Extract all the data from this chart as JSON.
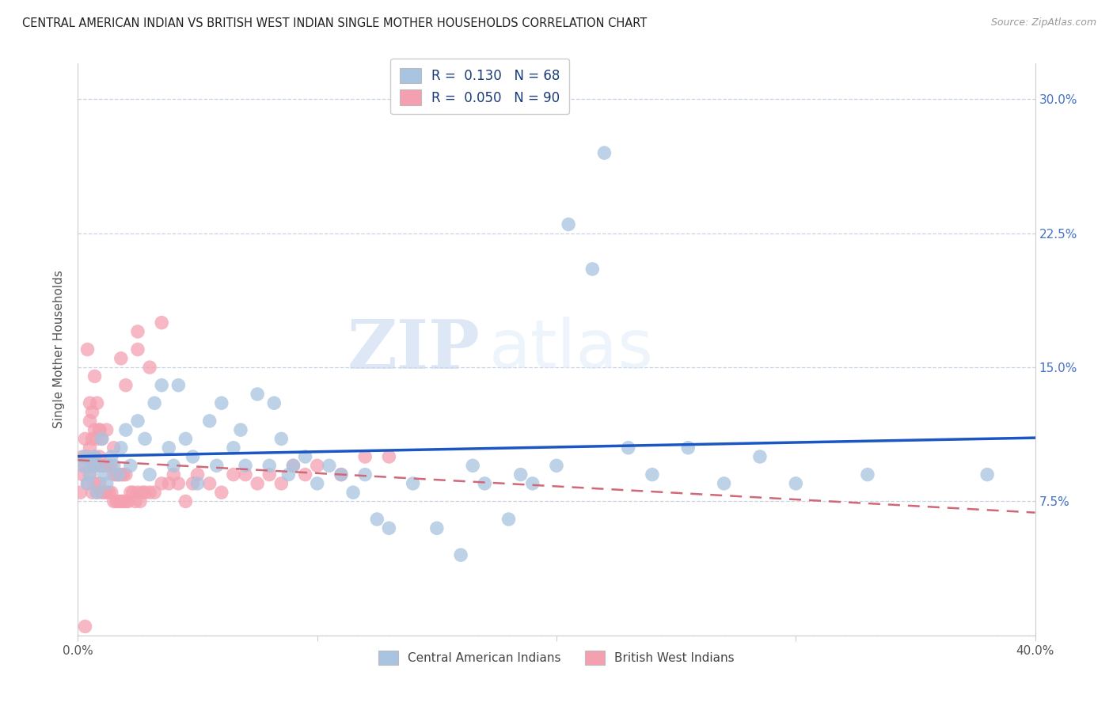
{
  "title": "CENTRAL AMERICAN INDIAN VS BRITISH WEST INDIAN SINGLE MOTHER HOUSEHOLDS CORRELATION CHART",
  "source": "Source: ZipAtlas.com",
  "ylabel": "Single Mother Households",
  "xlim": [
    0.0,
    0.4
  ],
  "ylim": [
    0.0,
    0.32
  ],
  "xticks": [
    0.0,
    0.1,
    0.2,
    0.3,
    0.4
  ],
  "xticklabels": [
    "0.0%",
    "",
    "",
    "",
    "40.0%"
  ],
  "yticks": [
    0.0,
    0.075,
    0.15,
    0.225,
    0.3
  ],
  "yticklabels": [
    "",
    "7.5%",
    "15.0%",
    "22.5%",
    "30.0%"
  ],
  "blue_R": "0.130",
  "blue_N": "68",
  "pink_R": "0.050",
  "pink_N": "90",
  "blue_color": "#a8c4e0",
  "pink_color": "#f4a0b0",
  "blue_line_color": "#1a56c4",
  "pink_line_color": "#d06878",
  "background_color": "#ffffff",
  "grid_color": "#c8d4e4",
  "legend_label_blue": "Central American Indians",
  "legend_label_pink": "British West Indians",
  "watermark_zip": "ZIP",
  "watermark_atlas": "atlas",
  "blue_scatter_x": [
    0.002,
    0.003,
    0.004,
    0.005,
    0.006,
    0.007,
    0.008,
    0.009,
    0.01,
    0.011,
    0.012,
    0.014,
    0.015,
    0.017,
    0.018,
    0.02,
    0.022,
    0.025,
    0.028,
    0.03,
    0.032,
    0.035,
    0.038,
    0.04,
    0.042,
    0.045,
    0.048,
    0.05,
    0.055,
    0.058,
    0.06,
    0.065,
    0.068,
    0.07,
    0.075,
    0.08,
    0.082,
    0.085,
    0.088,
    0.09,
    0.095,
    0.1,
    0.105,
    0.11,
    0.115,
    0.12,
    0.125,
    0.13,
    0.14,
    0.15,
    0.16,
    0.165,
    0.17,
    0.18,
    0.185,
    0.19,
    0.2,
    0.205,
    0.215,
    0.22,
    0.23,
    0.24,
    0.255,
    0.27,
    0.285,
    0.3,
    0.33,
    0.38
  ],
  "blue_scatter_y": [
    0.095,
    0.1,
    0.085,
    0.09,
    0.095,
    0.1,
    0.08,
    0.095,
    0.11,
    0.09,
    0.085,
    0.1,
    0.095,
    0.09,
    0.105,
    0.115,
    0.095,
    0.12,
    0.11,
    0.09,
    0.13,
    0.14,
    0.105,
    0.095,
    0.14,
    0.11,
    0.1,
    0.085,
    0.12,
    0.095,
    0.13,
    0.105,
    0.115,
    0.095,
    0.135,
    0.095,
    0.13,
    0.11,
    0.09,
    0.095,
    0.1,
    0.085,
    0.095,
    0.09,
    0.08,
    0.09,
    0.065,
    0.06,
    0.085,
    0.06,
    0.045,
    0.095,
    0.085,
    0.065,
    0.09,
    0.085,
    0.095,
    0.23,
    0.205,
    0.27,
    0.105,
    0.09,
    0.105,
    0.085,
    0.1,
    0.085,
    0.09,
    0.09
  ],
  "pink_scatter_x": [
    0.001,
    0.002,
    0.002,
    0.003,
    0.003,
    0.004,
    0.004,
    0.005,
    0.005,
    0.005,
    0.006,
    0.006,
    0.006,
    0.007,
    0.007,
    0.007,
    0.008,
    0.008,
    0.008,
    0.009,
    0.009,
    0.009,
    0.01,
    0.01,
    0.01,
    0.011,
    0.011,
    0.012,
    0.012,
    0.012,
    0.013,
    0.013,
    0.014,
    0.014,
    0.015,
    0.015,
    0.015,
    0.016,
    0.016,
    0.017,
    0.017,
    0.018,
    0.018,
    0.019,
    0.019,
    0.02,
    0.02,
    0.021,
    0.022,
    0.023,
    0.024,
    0.025,
    0.026,
    0.027,
    0.028,
    0.03,
    0.032,
    0.035,
    0.038,
    0.04,
    0.042,
    0.045,
    0.048,
    0.05,
    0.055,
    0.06,
    0.065,
    0.07,
    0.075,
    0.08,
    0.085,
    0.09,
    0.095,
    0.1,
    0.11,
    0.12,
    0.13,
    0.035,
    0.025,
    0.003,
    0.004,
    0.005,
    0.006,
    0.007,
    0.008,
    0.009,
    0.018,
    0.02,
    0.025,
    0.03
  ],
  "pink_scatter_y": [
    0.08,
    0.09,
    0.1,
    0.095,
    0.11,
    0.085,
    0.1,
    0.09,
    0.105,
    0.12,
    0.08,
    0.095,
    0.11,
    0.085,
    0.1,
    0.115,
    0.08,
    0.095,
    0.11,
    0.085,
    0.1,
    0.115,
    0.08,
    0.095,
    0.11,
    0.08,
    0.095,
    0.08,
    0.095,
    0.115,
    0.08,
    0.095,
    0.08,
    0.095,
    0.075,
    0.09,
    0.105,
    0.075,
    0.09,
    0.075,
    0.09,
    0.075,
    0.09,
    0.075,
    0.09,
    0.075,
    0.09,
    0.075,
    0.08,
    0.08,
    0.075,
    0.08,
    0.075,
    0.08,
    0.08,
    0.08,
    0.08,
    0.085,
    0.085,
    0.09,
    0.085,
    0.075,
    0.085,
    0.09,
    0.085,
    0.08,
    0.09,
    0.09,
    0.085,
    0.09,
    0.085,
    0.095,
    0.09,
    0.095,
    0.09,
    0.1,
    0.1,
    0.175,
    0.17,
    0.005,
    0.16,
    0.13,
    0.125,
    0.145,
    0.13,
    0.115,
    0.155,
    0.14,
    0.16,
    0.15
  ]
}
